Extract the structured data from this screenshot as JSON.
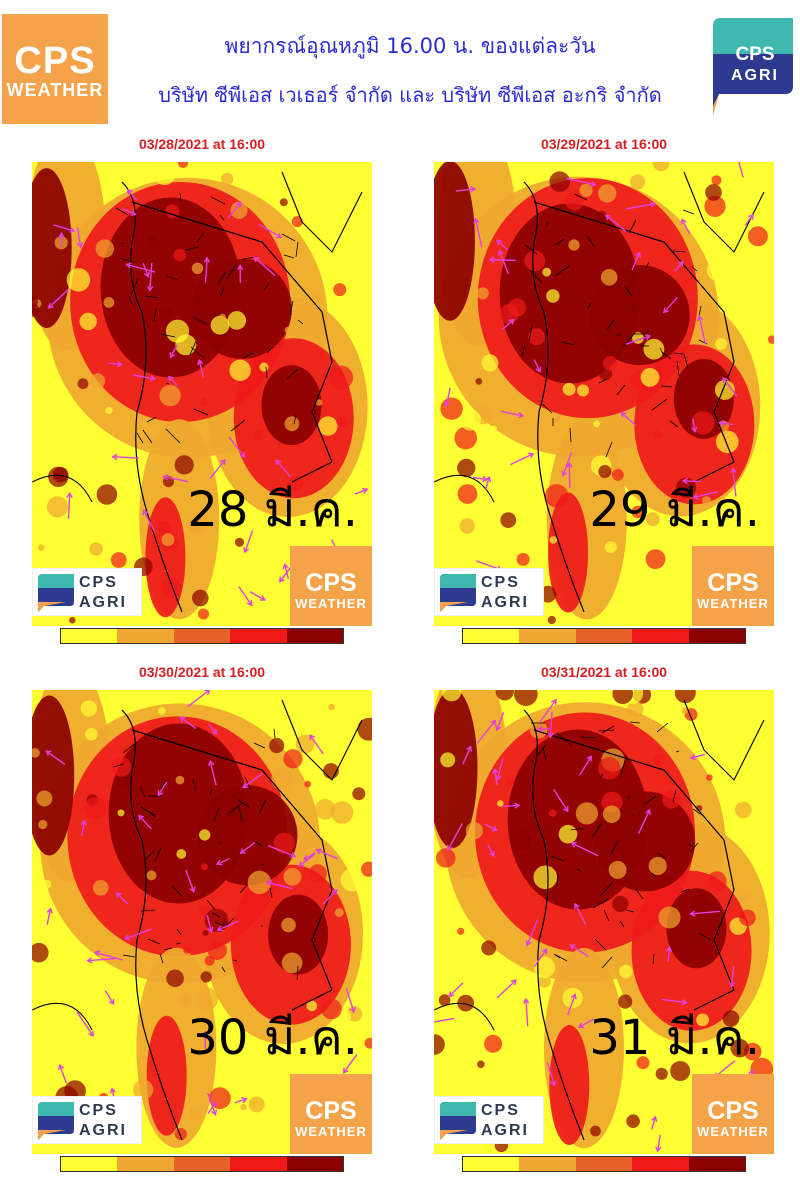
{
  "header": {
    "title_line1": "พยากรณ์อุณหภูมิ 16.00 น. ของแต่ละวัน",
    "title_line2": "บริษัท ซีพีเอส เวเธอร์ จำกัด และ บริษัท ซีพีเอส อะกริ จำกัด",
    "logo_left_big": "CPS",
    "logo_left_small": "WEATHER",
    "logo_right_top": "CPS",
    "logo_right_bottom": "AGRI"
  },
  "panels": [
    {
      "date": "03/28/2021 at 16:00",
      "day_label": "28 มี.ค.",
      "heat_level": 0.72
    },
    {
      "date": "03/29/2021 at 16:00",
      "day_label": "29 มี.ค.",
      "heat_level": 0.74
    },
    {
      "date": "03/30/2021 at 16:00",
      "day_label": "30 มี.ค.",
      "heat_level": 0.8
    },
    {
      "date": "03/31/2021 at 16:00",
      "day_label": "31 มี.ค.",
      "heat_level": 0.7
    }
  ],
  "mini_logos": {
    "agri_top": "CPS",
    "agri_bottom": "AGRI",
    "weather_big": "CPS",
    "weather_small": "WEATHER"
  },
  "colorbar_colors": [
    "#ffff33",
    "#f0a830",
    "#e8602a",
    "#ee1a1a",
    "#8b0000"
  ],
  "colors": {
    "title": "#2b2bd4",
    "date": "#d41f1f",
    "logo_orange": "#f5a34a",
    "wind_arrow": "#e040e0",
    "land_yellow": "#ffff33"
  },
  "icons": [
    "cps-weather-logo-icon",
    "cps-agri-logo-icon",
    "wind-arrow-icon"
  ]
}
